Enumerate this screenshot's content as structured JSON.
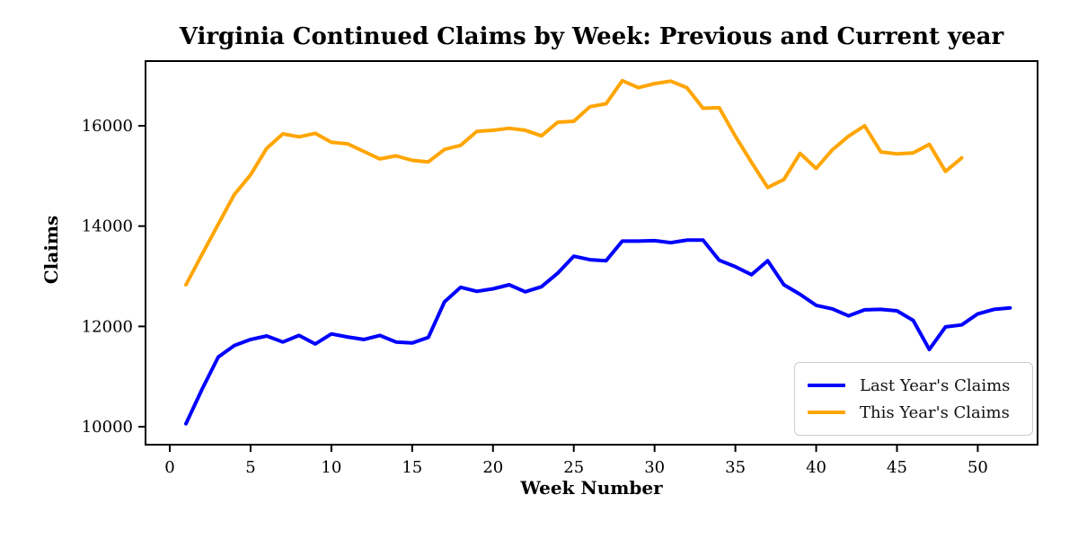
{
  "chart_data": {
    "type": "line",
    "title": "Virginia Continued Claims by Week: Previous and Current year",
    "xlabel": "Week Number",
    "ylabel": "Claims",
    "x_ticks": [
      0,
      5,
      10,
      15,
      20,
      25,
      30,
      35,
      40,
      45,
      50
    ],
    "y_ticks": [
      10000,
      12000,
      14000,
      16000
    ],
    "xlim": [
      -1.5,
      53.7
    ],
    "ylim": [
      9642,
      17290
    ],
    "grid": false,
    "background": "#ffffff",
    "axis_color": "#000000",
    "legend_position": "lower right",
    "series": [
      {
        "name": "Last Year's Claims",
        "color": "#0000ff",
        "x": [
          1,
          2,
          3,
          4,
          5,
          6,
          7,
          8,
          9,
          10,
          11,
          12,
          13,
          14,
          15,
          16,
          17,
          18,
          19,
          20,
          21,
          22,
          23,
          24,
          25,
          26,
          27,
          28,
          29,
          30,
          31,
          32,
          33,
          34,
          35,
          36,
          37,
          38,
          39,
          40,
          41,
          42,
          43,
          44,
          45,
          46,
          47,
          48,
          49,
          50,
          51,
          52
        ],
        "values": [
          10060,
          10750,
          11390,
          11620,
          11740,
          11810,
          11690,
          11820,
          11650,
          11850,
          11790,
          11740,
          11820,
          11690,
          11670,
          11780,
          12490,
          12780,
          12700,
          12750,
          12830,
          12690,
          12790,
          13060,
          13400,
          13330,
          13310,
          13700,
          13700,
          13710,
          13670,
          13720,
          13720,
          13320,
          13190,
          13030,
          13310,
          12830,
          12640,
          12420,
          12350,
          12210,
          12330,
          12340,
          12310,
          12120,
          11540,
          11990,
          12030,
          12250,
          12340,
          12370
        ]
      },
      {
        "name": "This Year's Claims",
        "color": "#ffa500",
        "x": [
          1,
          2,
          3,
          4,
          5,
          6,
          7,
          8,
          9,
          10,
          11,
          12,
          13,
          14,
          15,
          16,
          17,
          18,
          19,
          20,
          21,
          22,
          23,
          24,
          25,
          26,
          27,
          28,
          29,
          30,
          31,
          32,
          33,
          34,
          35,
          36,
          37,
          38,
          39,
          40,
          41,
          42,
          43,
          44,
          45,
          46,
          47,
          48,
          49
        ],
        "values": [
          12830,
          13440,
          14040,
          14630,
          15020,
          15550,
          15840,
          15780,
          15850,
          15670,
          15640,
          15490,
          15340,
          15400,
          15310,
          15280,
          15530,
          15610,
          15890,
          15910,
          15950,
          15910,
          15800,
          16070,
          16090,
          16380,
          16440,
          16900,
          16760,
          16840,
          16890,
          16760,
          16350,
          16360,
          15790,
          15270,
          14770,
          14930,
          15450,
          15150,
          15520,
          15790,
          16000,
          15480,
          15440,
          15460,
          15630,
          15090,
          15360
        ]
      }
    ]
  }
}
